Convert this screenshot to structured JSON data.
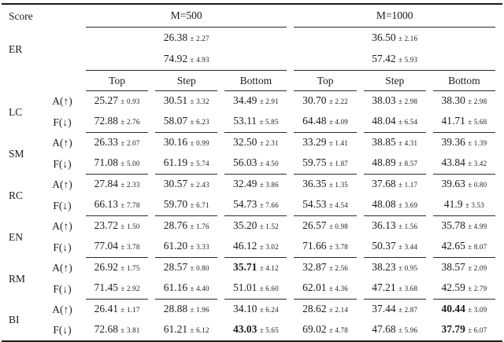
{
  "page": {
    "background": "#ffffff",
    "text_color": "#1b1b1b",
    "rule_color": "#1a1a1a"
  },
  "table": {
    "score_header": "Score",
    "group_headers": {
      "m500": "M=500",
      "m1000": "M=1000"
    },
    "sub_headers": [
      "Top",
      "Step",
      "Bottom",
      "Top",
      "Step",
      "Bottom"
    ],
    "er": {
      "label": "ER",
      "row1": [
        {
          "v": "26.38",
          "pm": "± 2.27"
        },
        {
          "v": "36.50",
          "pm": "± 2.16"
        }
      ],
      "row2": [
        {
          "v": "74.92",
          "pm": "± 4.93"
        },
        {
          "v": "57.42",
          "pm": "± 5.93"
        }
      ]
    },
    "groups": [
      {
        "label": "LC",
        "rows": [
          {
            "metric": "A(↑)",
            "cells": [
              {
                "v": "25.27",
                "pm": "± 0.93"
              },
              {
                "v": "30.51",
                "pm": "± 3.32"
              },
              {
                "v": "34.49",
                "pm": "± 2.91"
              },
              {
                "v": "30.70",
                "pm": "± 2.22"
              },
              {
                "v": "38.03",
                "pm": "± 2.98"
              },
              {
                "v": "38.30",
                "pm": "± 2.98"
              }
            ]
          },
          {
            "metric": "F(↓)",
            "cells": [
              {
                "v": "72.88",
                "pm": "± 2.76"
              },
              {
                "v": "58.07",
                "pm": "± 6.23"
              },
              {
                "v": "53.11",
                "pm": "± 5.85"
              },
              {
                "v": "64.48",
                "pm": "± 4.09"
              },
              {
                "v": "48.04",
                "pm": "± 6.54"
              },
              {
                "v": "41.71",
                "pm": "± 5.68"
              }
            ]
          }
        ]
      },
      {
        "label": "SM",
        "rows": [
          {
            "metric": "A(↑)",
            "cells": [
              {
                "v": "26.33",
                "pm": "± 2.07"
              },
              {
                "v": "30.16",
                "pm": "± 0.99"
              },
              {
                "v": "32.50",
                "pm": "± 2.31"
              },
              {
                "v": "33.29",
                "pm": "± 1.41"
              },
              {
                "v": "38.85",
                "pm": "± 4.31"
              },
              {
                "v": "39.36",
                "pm": "± 1.39"
              }
            ]
          },
          {
            "metric": "F(↓)",
            "cells": [
              {
                "v": "71.08",
                "pm": "± 5.00"
              },
              {
                "v": "61.19",
                "pm": "± 5.74"
              },
              {
                "v": "56.03",
                "pm": "± 4.50"
              },
              {
                "v": "59.75",
                "pm": "± 1.87"
              },
              {
                "v": "48.89",
                "pm": "± 8.57"
              },
              {
                "v": "43.84",
                "pm": "± 3.42"
              }
            ]
          }
        ]
      },
      {
        "label": "RC",
        "rows": [
          {
            "metric": "A(↑)",
            "cells": [
              {
                "v": "27.84",
                "pm": "± 2.33"
              },
              {
                "v": "30.57",
                "pm": "± 2.43"
              },
              {
                "v": "32.49",
                "pm": "± 3.86"
              },
              {
                "v": "36.35",
                "pm": "± 1.35"
              },
              {
                "v": "37.68",
                "pm": "± 1.17"
              },
              {
                "v": "39.63",
                "pm": "± 0.80"
              }
            ]
          },
          {
            "metric": "F(↓)",
            "cells": [
              {
                "v": "66.13",
                "pm": "± 7.78"
              },
              {
                "v": "59.70",
                "pm": "± 6.71"
              },
              {
                "v": "54.73",
                "pm": "± 7.66"
              },
              {
                "v": "54.53",
                "pm": "± 4.54"
              },
              {
                "v": "48.08",
                "pm": "± 3.69"
              },
              {
                "v": "41.9",
                "pm": "± 3.53"
              }
            ]
          }
        ]
      },
      {
        "label": "EN",
        "rows": [
          {
            "metric": "A(↑)",
            "cells": [
              {
                "v": "23.72",
                "pm": "± 1.50"
              },
              {
                "v": "28.76",
                "pm": "± 1.76"
              },
              {
                "v": "35.20",
                "pm": "± 1.52"
              },
              {
                "v": "26.57",
                "pm": "± 0.98"
              },
              {
                "v": "36.13",
                "pm": "± 1.56"
              },
              {
                "v": "35.78",
                "pm": "± 4.99"
              }
            ]
          },
          {
            "metric": "F(↓)",
            "cells": [
              {
                "v": "77.04",
                "pm": "± 3.78"
              },
              {
                "v": "61.20",
                "pm": "± 3.33"
              },
              {
                "v": "46.12",
                "pm": "± 3.02"
              },
              {
                "v": "71.66",
                "pm": "± 3.78"
              },
              {
                "v": "50.37",
                "pm": "± 3.44"
              },
              {
                "v": "42.65",
                "pm": "± 8.07"
              }
            ]
          }
        ]
      },
      {
        "label": "RM",
        "rows": [
          {
            "metric": "A(↑)",
            "cells": [
              {
                "v": "26.92",
                "pm": "± 1.75"
              },
              {
                "v": "28.57",
                "pm": "± 0.80"
              },
              {
                "v": "35.71",
                "pm": "± 4.12",
                "bold": true
              },
              {
                "v": "32.87",
                "pm": "± 2.56"
              },
              {
                "v": "38.23",
                "pm": "± 0.95"
              },
              {
                "v": "38.57",
                "pm": "± 2.09"
              }
            ]
          },
          {
            "metric": "F(↓)",
            "cells": [
              {
                "v": "71.45",
                "pm": "± 2.92"
              },
              {
                "v": "61.16",
                "pm": "± 4.40"
              },
              {
                "v": "51.01",
                "pm": "± 6.60"
              },
              {
                "v": "62.01",
                "pm": "± 4.36"
              },
              {
                "v": "47.21",
                "pm": "± 3.68"
              },
              {
                "v": "42.59",
                "pm": "± 2.79"
              }
            ]
          }
        ]
      },
      {
        "label": "BI",
        "rows": [
          {
            "metric": "A(↑)",
            "cells": [
              {
                "v": "26.41",
                "pm": "± 1.17"
              },
              {
                "v": "28.88",
                "pm": "± 1.96"
              },
              {
                "v": "34.10",
                "pm": "± 6.24"
              },
              {
                "v": "28.62",
                "pm": "± 2.14"
              },
              {
                "v": "37.44",
                "pm": "± 2.87"
              },
              {
                "v": "40.44",
                "pm": "± 3.09",
                "bold": true
              }
            ]
          },
          {
            "metric": "F(↓)",
            "cells": [
              {
                "v": "72.68",
                "pm": "± 3.81"
              },
              {
                "v": "61.21",
                "pm": "± 6.12"
              },
              {
                "v": "43.03",
                "pm": "± 5.65",
                "bold": true
              },
              {
                "v": "69.02",
                "pm": "± 4.78"
              },
              {
                "v": "47.68",
                "pm": "± 5.96"
              },
              {
                "v": "37.79",
                "pm": "± 6.07",
                "bold": true
              }
            ]
          }
        ]
      }
    ]
  }
}
